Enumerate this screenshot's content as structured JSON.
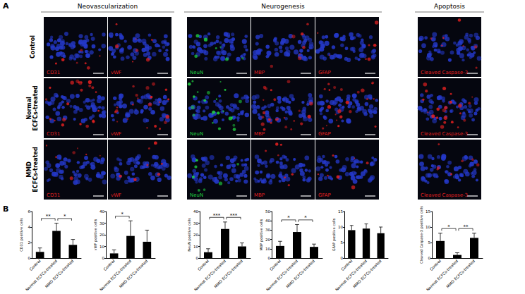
{
  "panel_a": {
    "label": "A",
    "groups": [
      {
        "title": "Neovascularization",
        "markers": [
          {
            "name": "CD31",
            "color": "#e02020"
          },
          {
            "name": "vWF",
            "color": "#e02020"
          }
        ]
      },
      {
        "title": "Neurogenesis",
        "markers": [
          {
            "name": "NeuN",
            "color": "#20d040"
          },
          {
            "name": "MBP",
            "color": "#e02020"
          },
          {
            "name": "GFAP",
            "color": "#e02020"
          }
        ]
      },
      {
        "title": "Apoptosis",
        "markers": [
          {
            "name": "Cleaved Caspase-3",
            "color": "#e02020"
          }
        ]
      }
    ],
    "rows": [
      "Control",
      "Normal ECFCs-treated",
      "MMD ECFCs-treated"
    ]
  },
  "panel_b_label": "B",
  "chart_data": [
    {
      "type": "bar",
      "ylabel": "CD31 positive cells",
      "categories": [
        "Control",
        "Normal ECFCs-treated",
        "MMD ECFCs-treated"
      ],
      "values": [
        0.8,
        3.5,
        1.7
      ],
      "errors": [
        0.5,
        1.0,
        0.7
      ],
      "color": "#000000",
      "ylim": [
        0,
        6
      ],
      "yticks": [
        0,
        2,
        4,
        6
      ],
      "grid": false,
      "significance": [
        {
          "from": "Control",
          "to": "Normal ECFCs-treated",
          "label": "**"
        },
        {
          "from": "Normal ECFCs-treated",
          "to": "MMD ECFCs-treated",
          "label": "*"
        }
      ]
    },
    {
      "type": "bar",
      "ylabel": "vWF positive cells",
      "categories": [
        "Control",
        "Normal ECFCs-treated",
        "MMD ECFCs-treated"
      ],
      "values": [
        4,
        19,
        14
      ],
      "errors": [
        3,
        13,
        10
      ],
      "color": "#000000",
      "ylim": [
        0,
        40
      ],
      "yticks": [
        0,
        10,
        20,
        30,
        40
      ],
      "grid": false,
      "significance": [
        {
          "from": "Control",
          "to": "Normal ECFCs-treated",
          "label": "*"
        }
      ]
    },
    {
      "type": "bar",
      "ylabel": "NeuN positive cells",
      "categories": [
        "Control",
        "Normal ECFCs-treated",
        "MMD ECFCs-treated"
      ],
      "values": [
        5,
        25,
        10
      ],
      "errors": [
        3,
        6,
        3
      ],
      "color": "#000000",
      "ylim": [
        0,
        40
      ],
      "yticks": [
        0,
        10,
        20,
        30,
        40
      ],
      "grid": false,
      "significance": [
        {
          "from": "Control",
          "to": "Normal ECFCs-treated",
          "label": "***"
        },
        {
          "from": "Normal ECFCs-treated",
          "to": "MMD ECFCs-treated",
          "label": "***"
        }
      ]
    },
    {
      "type": "bar",
      "ylabel": "MBP positive cells",
      "categories": [
        "Control",
        "Normal ECFCs-treated",
        "MMD ECFCs-treated"
      ],
      "values": [
        13,
        28,
        12
      ],
      "errors": [
        5,
        8,
        3
      ],
      "color": "#000000",
      "ylim": [
        0,
        50
      ],
      "yticks": [
        0,
        10,
        20,
        30,
        40,
        50
      ],
      "grid": false,
      "significance": [
        {
          "from": "Control",
          "to": "Normal ECFCs-treated",
          "label": "*"
        },
        {
          "from": "Normal ECFCs-treated",
          "to": "MMD ECFCs-treated",
          "label": "*"
        }
      ]
    },
    {
      "type": "bar",
      "ylabel": "GFAP positive cells",
      "categories": [
        "Control",
        "Normal ECFCs-treated",
        "MMD ECFCs-treated"
      ],
      "values": [
        9,
        9.5,
        8
      ],
      "errors": [
        1.5,
        1.5,
        2
      ],
      "color": "#000000",
      "ylim": [
        0,
        15
      ],
      "yticks": [
        0,
        5,
        10,
        15
      ],
      "grid": false,
      "significance": []
    },
    {
      "type": "bar",
      "ylabel": "Cleaved Caspase-3 positive cells",
      "categories": [
        "Control",
        "Normal ECFCs-treated",
        "MMD ECFCs-treated"
      ],
      "values": [
        5.5,
        1,
        6.5
      ],
      "errors": [
        2.5,
        0.7,
        1.5
      ],
      "color": "#000000",
      "ylim": [
        0,
        15
      ],
      "yticks": [
        0,
        5,
        10,
        15
      ],
      "grid": false,
      "significance": [
        {
          "from": "Control",
          "to": "Normal ECFCs-treated",
          "label": "*"
        },
        {
          "from": "Normal ECFCs-treated",
          "to": "MMD ECFCs-treated",
          "label": "**"
        }
      ]
    }
  ]
}
